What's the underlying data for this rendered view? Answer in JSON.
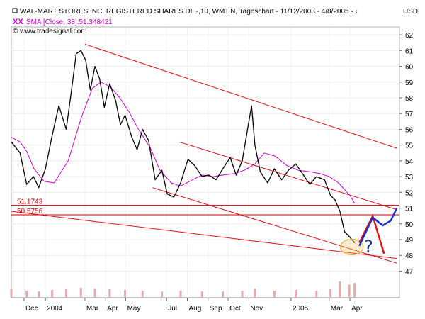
{
  "chart_data": {
    "type": "line",
    "title": "WAL-MART STORES INC. REGISTERED SHARES DL -,10, WMT.N, Tageschart - 11/12/2003 - 4/8/2005 - ‹",
    "indicator_label": "SMA [Close, 38]:51.348421",
    "source": "© www.tradesignal.com",
    "currency": "USD",
    "x_ticks": [
      "Dec",
      "2004",
      "Mar",
      "Apr",
      "May",
      "Jul",
      "Aug",
      "Sep",
      "Oct",
      "Nov",
      "2005",
      "Mar",
      "Apr"
    ],
    "y_ticks": [
      "47",
      "48",
      "49",
      "50",
      "51",
      "52",
      "53",
      "54",
      "55",
      "56",
      "57",
      "58",
      "59",
      "60",
      "61",
      "62"
    ],
    "ylim": [
      46.3,
      62.5
    ],
    "horizontal_levels": [
      {
        "label": "51.1743",
        "value": 51.1743
      },
      {
        "label": "50.5756",
        "value": 50.5756
      }
    ],
    "annotation": "?",
    "price_series": {
      "name": "WMT.N",
      "x": [
        "2003-11-12",
        "2003-11-25",
        "2003-12-05",
        "2003-12-15",
        "2003-12-23",
        "2004-01-02",
        "2004-01-12",
        "2004-01-22",
        "2004-02-02",
        "2004-02-10",
        "2004-02-17",
        "2004-02-24",
        "2004-03-02",
        "2004-03-09",
        "2004-03-16",
        "2004-03-23",
        "2004-03-30",
        "2004-04-07",
        "2004-04-16",
        "2004-04-23",
        "2004-04-30",
        "2004-05-10",
        "2004-05-18",
        "2004-05-26",
        "2004-06-04",
        "2004-06-14",
        "2004-06-24",
        "2004-07-02",
        "2004-07-12",
        "2004-07-22",
        "2004-08-02",
        "2004-08-12",
        "2004-08-23",
        "2004-09-02",
        "2004-09-13",
        "2004-09-23",
        "2004-10-04",
        "2004-10-13",
        "2004-10-22",
        "2004-11-01",
        "2004-11-05",
        "2004-11-10",
        "2004-11-18",
        "2004-11-29",
        "2004-12-09",
        "2004-12-20",
        "2004-12-30",
        "2005-01-10",
        "2005-01-20",
        "2005-01-31",
        "2005-02-10",
        "2005-02-22",
        "2005-03-03",
        "2005-03-10",
        "2005-03-17",
        "2005-03-24",
        "2005-03-31",
        "2005-04-08"
      ],
      "values": [
        55.2,
        54.5,
        52.5,
        53.0,
        52.3,
        53.5,
        55.6,
        57.5,
        56.0,
        58.5,
        60.8,
        61.0,
        60.4,
        58.5,
        60.0,
        59.2,
        57.4,
        58.9,
        57.8,
        56.3,
        56.9,
        55.5,
        54.7,
        56.0,
        55.3,
        52.8,
        53.4,
        51.9,
        51.7,
        52.6,
        54.1,
        53.7,
        53.0,
        53.1,
        52.8,
        53.5,
        54.2,
        53.1,
        54.0,
        56.5,
        57.5,
        55.0,
        53.3,
        52.6,
        53.5,
        52.8,
        53.4,
        53.8,
        53.2,
        52.5,
        53.0,
        52.8,
        51.8,
        51.5,
        50.8,
        49.5,
        49.2,
        48.8
      ]
    },
    "sma_series": {
      "name": "SMA [Close, 38]",
      "x": [
        "2003-11-12",
        "2003-11-25",
        "2003-12-05",
        "2003-12-16",
        "2003-12-31",
        "2004-01-15",
        "2004-02-05",
        "2004-02-25",
        "2004-03-12",
        "2004-03-25",
        "2004-04-08",
        "2004-04-22",
        "2004-05-06",
        "2004-05-20",
        "2004-06-07",
        "2004-06-21",
        "2004-07-08",
        "2004-07-22",
        "2004-08-09",
        "2004-08-23",
        "2004-09-09",
        "2004-09-23",
        "2004-10-11",
        "2004-10-25",
        "2004-11-10",
        "2004-11-24",
        "2004-12-10",
        "2004-12-28",
        "2005-01-14",
        "2005-02-01",
        "2005-02-15",
        "2005-03-01",
        "2005-03-15",
        "2005-04-01",
        "2005-04-08"
      ],
      "values": [
        55.5,
        55.2,
        54.6,
        53.5,
        52.7,
        52.6,
        54.0,
        56.8,
        58.6,
        59.0,
        58.7,
        58.0,
        57.1,
        56.0,
        54.8,
        53.4,
        52.6,
        52.4,
        52.8,
        53.1,
        53.0,
        53.1,
        53.2,
        53.4,
        53.8,
        54.5,
        54.3,
        53.7,
        53.4,
        53.3,
        53.2,
        53.0,
        52.6,
        51.8,
        51.3
      ]
    },
    "trend_lines": [
      {
        "name": "upper-channel",
        "x": [
          "2004-03-01",
          "2005-06-10"
        ],
        "y": [
          61.4,
          54.8
        ]
      },
      {
        "name": "middle-channel",
        "x": [
          "2004-07-20",
          "2005-06-10"
        ],
        "y": [
          55.2,
          50.9
        ]
      },
      {
        "name": "lower-channel",
        "x": [
          "2004-06-10",
          "2005-06-10"
        ],
        "y": [
          52.3,
          47.5
        ]
      },
      {
        "name": "support-line",
        "x": [
          "2003-11-12",
          "2005-06-10"
        ],
        "y": [
          50.8,
          47.8
        ]
      }
    ],
    "projection_paths": [
      {
        "name": "red-projection",
        "x": [
          "2005-04-15",
          "2005-05-05",
          "2005-05-22"
        ],
        "y": [
          48.8,
          50.5,
          48.1
        ]
      },
      {
        "name": "blue-projection",
        "x": [
          "2005-04-15",
          "2005-05-05",
          "2005-05-20",
          "2005-06-01",
          "2005-06-10"
        ],
        "y": [
          48.6,
          50.4,
          49.9,
          50.2,
          51.0
        ]
      }
    ],
    "volume": {
      "x": [
        "2003-11-12",
        "2003-12-05",
        "2003-12-23",
        "2004-01-12",
        "2004-02-02",
        "2004-02-24",
        "2004-03-16",
        "2004-04-07",
        "2004-04-30",
        "2004-05-26",
        "2004-06-24",
        "2004-07-22",
        "2004-08-23",
        "2004-09-23",
        "2004-10-22",
        "2004-11-10",
        "2004-12-09",
        "2005-01-10",
        "2005-02-10",
        "2005-03-03",
        "2005-03-17",
        "2005-03-31",
        "2005-04-08"
      ],
      "values": [
        0.5,
        0.4,
        0.35,
        0.45,
        0.5,
        0.6,
        0.55,
        0.5,
        0.45,
        0.4,
        0.35,
        0.4,
        0.35,
        0.35,
        0.4,
        0.55,
        0.4,
        0.45,
        0.4,
        0.5,
        1.0,
        0.8,
        0.9
      ]
    },
    "colors": {
      "price": "#000000",
      "sma": "#cc00cc",
      "trend": "#e01010",
      "level": "#cc0000",
      "projection_red": "#e01010",
      "projection_blue": "#1030d0",
      "question": "#1030a0",
      "highlight": "#e8b040",
      "volume": "#e8a8a8"
    }
  }
}
